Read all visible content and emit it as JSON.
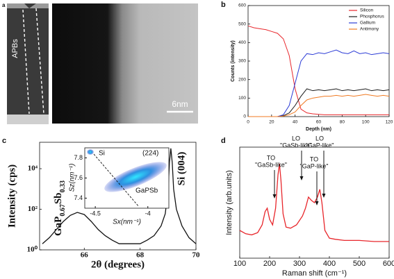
{
  "chart_data": [
    {
      "type": "image",
      "label": "a",
      "annotation": "APBs",
      "scale_bar": "6nm"
    },
    {
      "type": "line",
      "label": "b",
      "xlabel": "Depth (nm)",
      "ylabel": "Counts (intensity)",
      "x": [
        0,
        5,
        10,
        15,
        20,
        25,
        30,
        35,
        40,
        45,
        50,
        55,
        60,
        65,
        70,
        75,
        80,
        85,
        90,
        95,
        100,
        105,
        110,
        115,
        120
      ],
      "series": [
        {
          "name": "Silicon",
          "color": "#e8262b",
          "values": [
            490,
            480,
            475,
            470,
            460,
            450,
            420,
            330,
            150,
            40,
            20,
            15,
            12,
            10,
            10,
            10,
            10,
            10,
            10,
            10,
            10,
            10,
            10,
            10,
            10
          ]
        },
        {
          "name": "Phosphorus",
          "color": "#1a1a1a",
          "values": [
            0,
            0,
            0,
            0,
            0,
            0,
            5,
            20,
            60,
            110,
            150,
            140,
            145,
            140,
            145,
            150,
            140,
            145,
            140,
            145,
            150,
            140,
            145,
            140,
            145
          ]
        },
        {
          "name": "Gallium",
          "color": "#2b3bd6",
          "values": [
            0,
            0,
            0,
            0,
            0,
            0,
            10,
            60,
            180,
            300,
            340,
            335,
            345,
            340,
            350,
            360,
            345,
            340,
            355,
            340,
            345,
            335,
            340,
            345,
            340
          ]
        },
        {
          "name": "Antimony",
          "color": "#f07a22",
          "values": [
            0,
            0,
            0,
            0,
            0,
            0,
            3,
            10,
            25,
            60,
            90,
            100,
            105,
            110,
            110,
            115,
            110,
            115,
            110,
            115,
            120,
            115,
            110,
            115,
            110
          ]
        }
      ],
      "xlim": [
        0,
        120
      ],
      "xticks": [
        0,
        20,
        40,
        60,
        80,
        100,
        120
      ],
      "ylim": [
        0,
        600
      ],
      "yticks": [
        0,
        100,
        200,
        300,
        400,
        500,
        600
      ],
      "legend": "upper right"
    },
    {
      "type": "line",
      "label": "c",
      "xlabel": "2θ (degrees)",
      "ylabel": "Intensity (cps)",
      "log_y": true,
      "x": [
        64.5,
        64.75,
        65.0,
        65.25,
        65.5,
        65.75,
        66.0,
        66.25,
        66.5,
        66.75,
        67.0,
        67.25,
        67.5,
        67.75,
        68.0,
        68.25,
        68.5,
        68.75,
        68.9,
        69.0,
        69.05,
        69.1,
        69.15,
        69.2,
        69.3,
        69.5,
        69.75,
        70.0
      ],
      "series": [
        {
          "color": "#111111",
          "values": [
            2,
            4,
            10,
            25,
            50,
            70,
            55,
            25,
            10,
            5,
            3,
            2,
            2,
            2,
            2,
            3,
            5,
            15,
            60,
            800,
            20000,
            100000,
            20000,
            1000,
            100,
            15,
            4,
            2
          ]
        }
      ],
      "xlim": [
        64.4,
        70
      ],
      "xticks": [
        66,
        68,
        70
      ],
      "ylim": [
        1,
        200000
      ],
      "yticks": [
        {
          "value": 1,
          "label": "10⁰"
        },
        {
          "value": 100,
          "label": "10²"
        },
        {
          "value": 10000,
          "label": "10⁴"
        }
      ],
      "peak_labels": {
        "film": [
          "GaP",
          "0.67",
          "Sb",
          "0.33"
        ],
        "substrate": "Si (004)"
      },
      "inset": {
        "xlabel": "Sx(nm⁻¹)",
        "ylabel": "Sz(nm⁻¹)",
        "xlim": [
          -4.6,
          -3.8
        ],
        "xticks": [
          -4.5,
          -4.0
        ],
        "ylim": [
          7.3,
          7.9
        ],
        "yticks": [
          7.4,
          7.6,
          7.8
        ],
        "labels": [
          "Si",
          "(224)",
          "GaPSb"
        ]
      }
    },
    {
      "type": "line",
      "label": "d",
      "xlabel": "Raman shift (cm⁻¹)",
      "ylabel": "Intensity (arb.units)",
      "x": [
        100,
        120,
        140,
        160,
        175,
        185,
        192,
        200,
        210,
        220,
        228,
        233,
        238,
        245,
        255,
        270,
        290,
        310,
        320,
        330,
        340,
        350,
        360,
        368,
        375,
        385,
        400,
        420,
        450,
        500,
        550,
        600
      ],
      "series": [
        {
          "color": "#e8262b",
          "values": [
            25,
            22,
            21,
            23,
            30,
            42,
            45,
            35,
            30,
            45,
            75,
            85,
            70,
            40,
            28,
            27,
            30,
            38,
            45,
            55,
            52,
            50,
            55,
            62,
            50,
            25,
            18,
            17,
            16,
            16,
            15,
            15
          ]
        }
      ],
      "xlim": [
        100,
        600
      ],
      "xticks": [
        100,
        200,
        300,
        400,
        500,
        600
      ],
      "ylim": [
        0,
        100
      ],
      "annotations": [
        [
          "TO",
          "\"GaSb-like\""
        ],
        [
          "LO",
          "\"GaSb-like\""
        ],
        [
          "TO",
          "\"GaP-like\""
        ],
        [
          "LO",
          "\"GaP-like\""
        ]
      ]
    }
  ]
}
